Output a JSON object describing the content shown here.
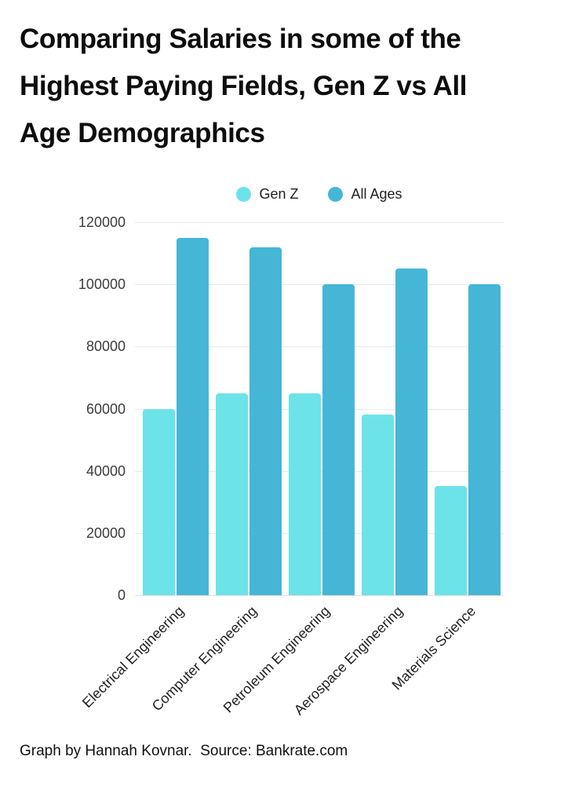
{
  "title": {
    "lines": [
      "Comparing Salaries in some of the",
      "Highest Paying Fields, Gen Z vs All",
      "Age Demographics"
    ]
  },
  "footer": {
    "text": "Graph by Hannah Kovnar.  Source: Bankrate.com"
  },
  "colors": {
    "gen_z": "#6CE3E9",
    "all_ages": "#45B6D6",
    "gridline": "#e8e8e8",
    "text": "#0d0d0d"
  },
  "chart_data": {
    "type": "bar",
    "title": "Comparing Salaries in some of the Highest Paying Fields, Gen Z vs All Age Demographics",
    "categories": [
      "Electrical Engineering",
      "Computer Engineering",
      "Petroleum Engineering",
      "Aerospace Engineering",
      "Materials Science"
    ],
    "series": [
      {
        "name": "Gen Z",
        "color": "#6CE3E9",
        "values": [
          60000,
          65000,
          65000,
          58000,
          35000
        ]
      },
      {
        "name": "All Ages",
        "color": "#45B6D6",
        "values": [
          115000,
          112000,
          100000,
          105000,
          100000
        ]
      }
    ],
    "xlabel": "",
    "ylabel": "",
    "ylim": [
      0,
      120000
    ],
    "yticks": [
      0,
      20000,
      40000,
      60000,
      80000,
      100000,
      120000
    ],
    "grid": true,
    "legend_position": "top-center",
    "source_note": "Graph by Hannah Kovnar.  Source: Bankrate.com"
  }
}
